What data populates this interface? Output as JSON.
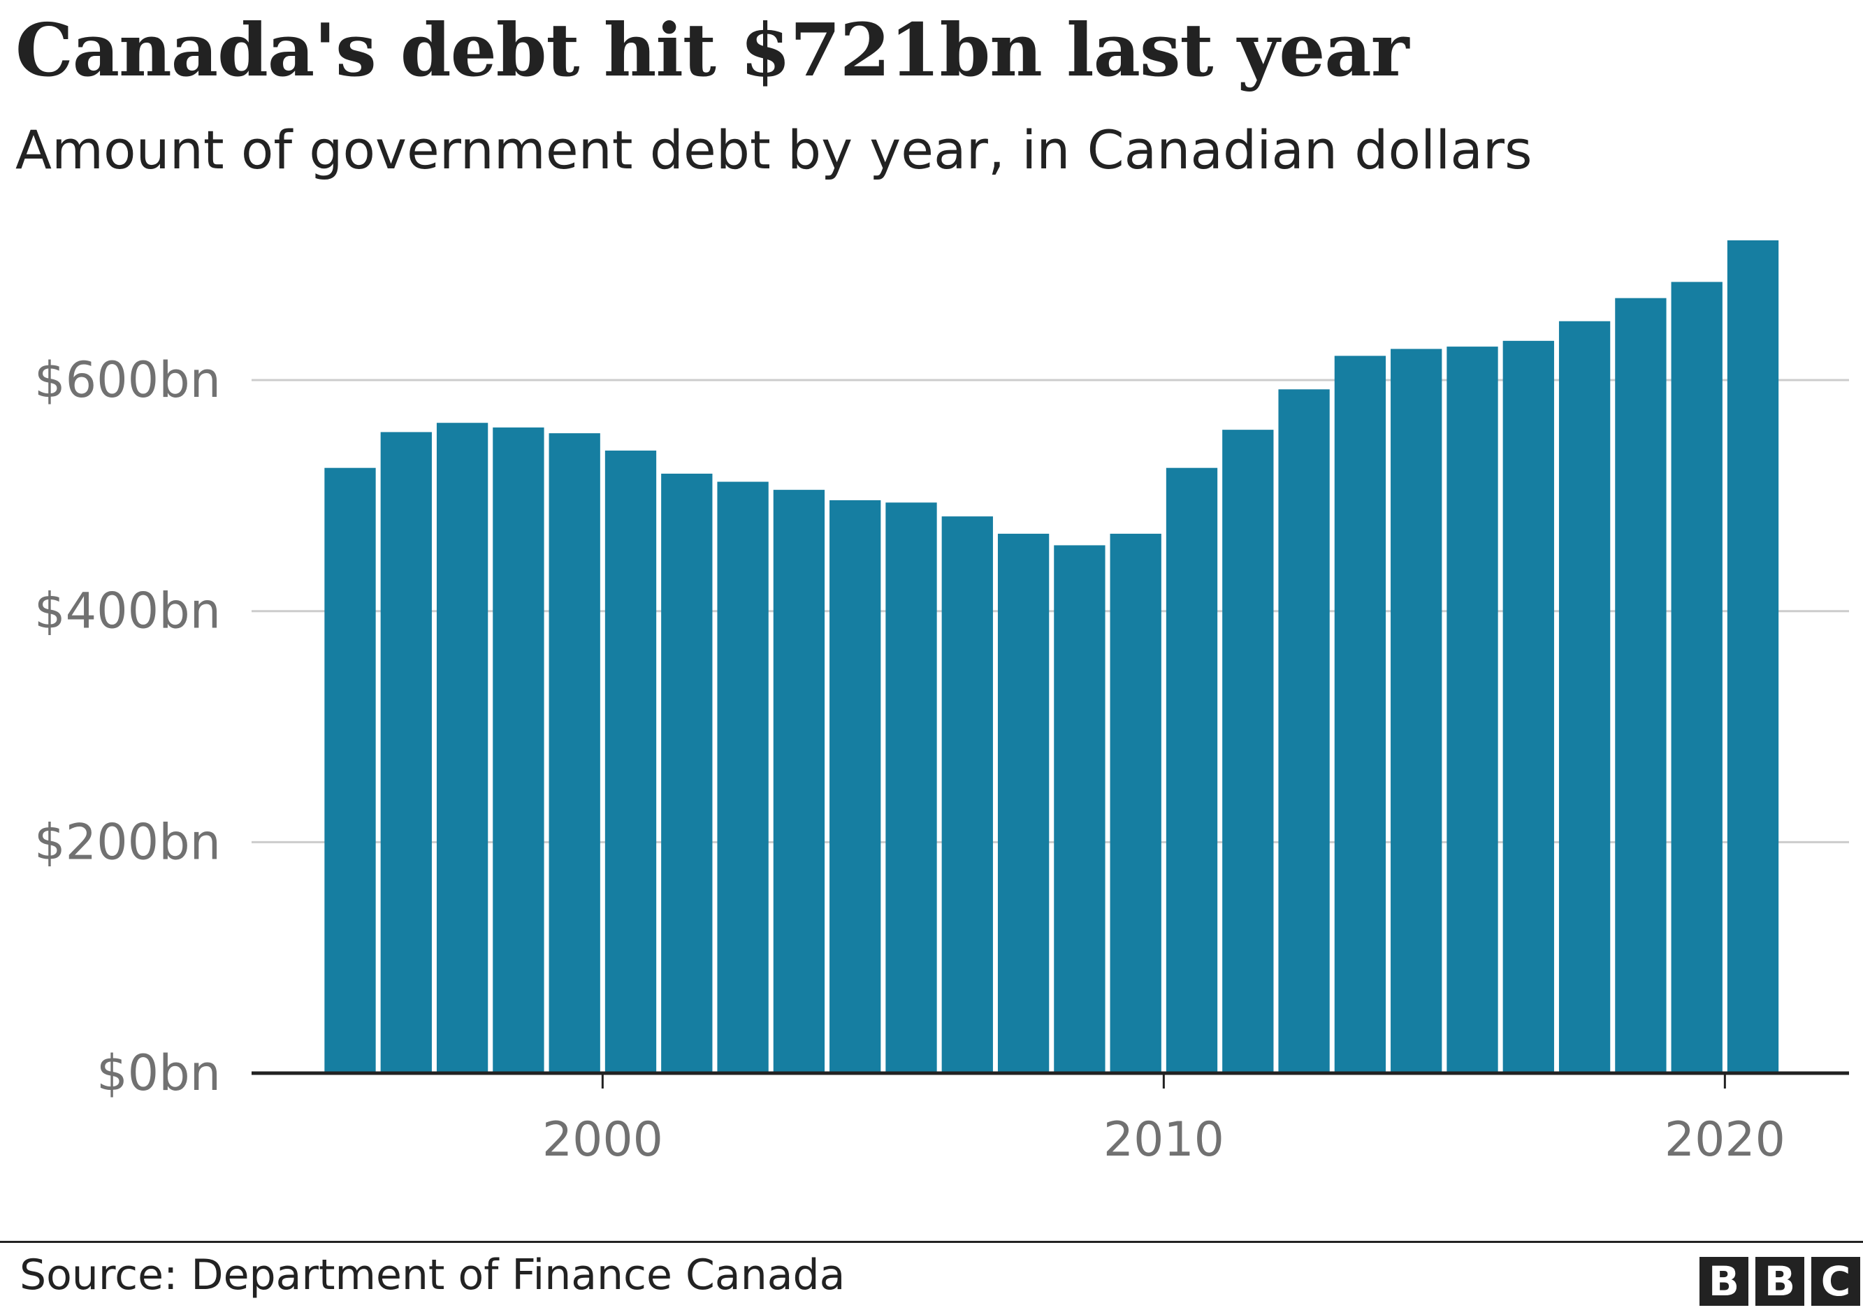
{
  "title": "Canada's debt hit $721bn last year",
  "subtitle": "Amount of government debt by year, in Canadian dollars",
  "source": "Source: Department of Finance Canada",
  "logo": [
    "B",
    "B",
    "C"
  ],
  "colors": {
    "bar": "#167ea1",
    "gridline": "#cccccc",
    "baseline": "#222222",
    "tick_text": "#717171",
    "text": "#222222"
  },
  "chart_data": {
    "type": "bar",
    "x": [
      1995,
      1996,
      1997,
      1998,
      1999,
      2000,
      2001,
      2002,
      2003,
      2004,
      2005,
      2006,
      2007,
      2008,
      2009,
      2010,
      2011,
      2012,
      2013,
      2014,
      2015,
      2016,
      2017,
      2018,
      2019,
      2020
    ],
    "values": [
      524,
      555,
      563,
      559,
      554,
      539,
      519,
      512,
      505,
      496,
      494,
      482,
      467,
      457,
      467,
      524,
      557,
      592,
      621,
      627,
      629,
      634,
      651,
      671,
      685,
      721
    ],
    "ylim": [
      0,
      721
    ],
    "yticks": [
      0,
      200,
      400,
      600
    ],
    "ytick_labels": [
      "$0bn",
      "$200bn",
      "$400bn",
      "$600bn"
    ],
    "xticks": [
      2000,
      2010,
      2020
    ],
    "xtick_labels": [
      "2000",
      "2010",
      "2020"
    ],
    "grid": true,
    "title": "Canada's debt hit $721bn last year",
    "subtitle": "Amount of government debt by year, in Canadian dollars",
    "xlabel": "",
    "ylabel": ""
  }
}
